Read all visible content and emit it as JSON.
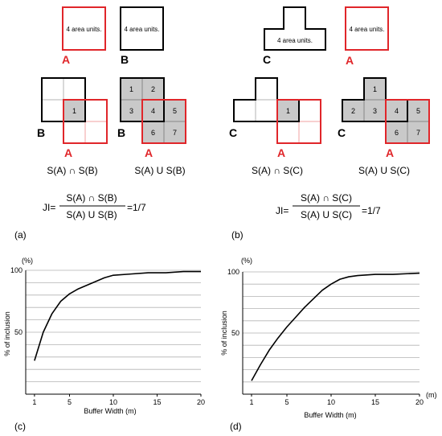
{
  "panel_a": {
    "area_label": "4 area units.",
    "shape_a": "A",
    "shape_b": "B",
    "cells_intersection": [
      "1"
    ],
    "cells_union": [
      "1",
      "2",
      "3",
      "4",
      "5",
      "6",
      "7"
    ],
    "intersection_caption": "S(A) ∩ S(B)",
    "union_caption": "S(A) U S(B)",
    "ji_prefix": "JI=",
    "ji_numerator": "S(A) ∩ S(B)",
    "ji_denominator": "S(A) U S(B)",
    "ji_value": "=1/7",
    "tag": "(a)"
  },
  "panel_b": {
    "area_label_c": "4 area units.",
    "area_label_a": "4 area units.",
    "shape_a": "A",
    "shape_c": "C",
    "cells_intersection": [
      "1"
    ],
    "cells_union": [
      "1",
      "2",
      "3",
      "4",
      "5",
      "6",
      "7"
    ],
    "intersection_caption": "S(A) ∩ S(C)",
    "union_caption": "S(A) U S(C)",
    "ji_prefix": "JI=",
    "ji_numerator": "S(A) ∩ S(C)",
    "ji_denominator": "S(A) U S(C)",
    "ji_value": "=1/7",
    "tag": "(b)"
  },
  "colors": {
    "red": "#e0262a",
    "gray": "#c9c9c9",
    "black": "#000000",
    "grid": "#b3b3b3"
  },
  "chart_data": [
    {
      "type": "line",
      "tag": "(c)",
      "unit_label": "(%)",
      "xlabel": "Buffer Width (m)",
      "ylabel": "% of inclusion",
      "xticks": [
        1,
        5,
        10,
        15,
        20
      ],
      "yticks": [
        50,
        100
      ],
      "xlim": [
        0,
        20
      ],
      "ylim": [
        0,
        100
      ],
      "grid": "horizontal",
      "series": [
        {
          "x": [
            1,
            2,
            3,
            4,
            5,
            6,
            7,
            8,
            9,
            10,
            12,
            14,
            16,
            18,
            20
          ],
          "y": [
            27,
            50,
            65,
            75,
            81,
            85,
            88,
            91,
            94,
            96,
            97,
            98,
            98,
            99,
            99
          ]
        }
      ]
    },
    {
      "type": "line",
      "tag": "(d)",
      "unit_label": "(%)",
      "x_unit_label": "(m)",
      "xlabel": "Buffer Width (m)",
      "ylabel": "% of inclusion",
      "xticks": [
        1,
        5,
        10,
        15,
        20
      ],
      "yticks": [
        50,
        100
      ],
      "xlim": [
        0,
        20
      ],
      "ylim": [
        0,
        100
      ],
      "grid": "horizontal",
      "series": [
        {
          "x": [
            1,
            2,
            3,
            4,
            5,
            6,
            7,
            8,
            9,
            10,
            11,
            12,
            13,
            15,
            17,
            20
          ],
          "y": [
            11,
            24,
            36,
            46,
            55,
            63,
            71,
            78,
            85,
            90,
            94,
            96,
            97,
            98,
            98,
            99
          ]
        }
      ]
    }
  ]
}
